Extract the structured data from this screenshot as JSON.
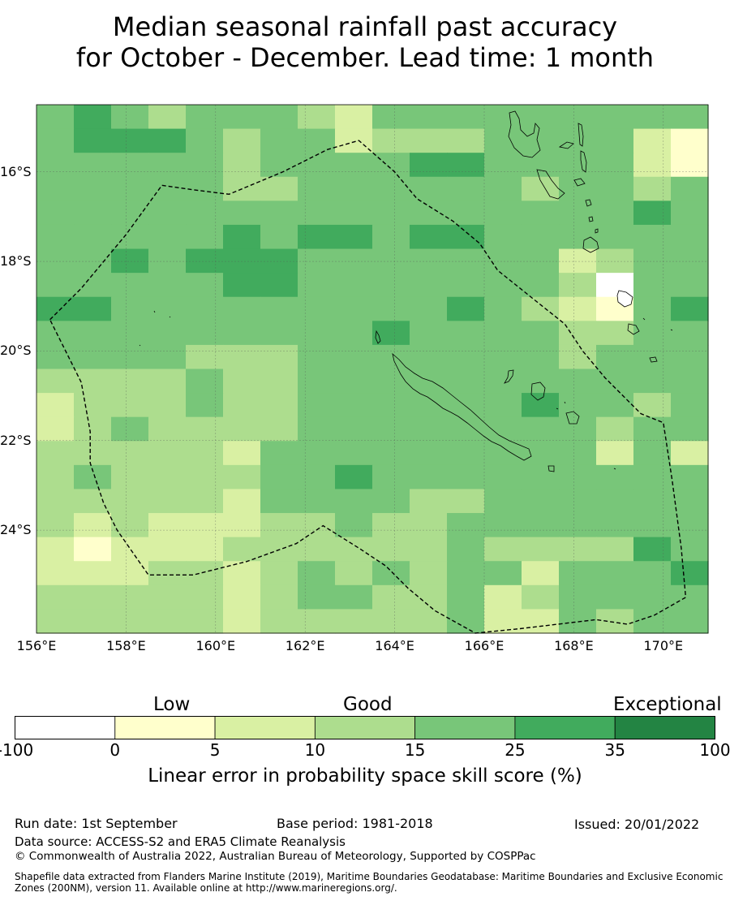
{
  "title": {
    "line1": "Median seasonal rainfall past accuracy",
    "line2": "for October - December. Lead time: 1 month"
  },
  "map": {
    "lon_range": [
      156.0,
      171.0
    ],
    "lat_range": [
      -26.3,
      -14.5
    ],
    "x_ticks": [
      "156°E",
      "158°E",
      "160°E",
      "162°E",
      "164°E",
      "166°E",
      "168°E",
      "170°E"
    ],
    "y_ticks": [
      "16°S",
      "18°S",
      "20°S",
      "22°S",
      "24°S"
    ],
    "grid": true,
    "cell_size_deg": 0.833,
    "skill_grid": [
      [
        3,
        4,
        3,
        2,
        3,
        3,
        3,
        2,
        1,
        3,
        3,
        3,
        3,
        3,
        3,
        3,
        3,
        3
      ],
      [
        3,
        4,
        4,
        4,
        3,
        2,
        3,
        3,
        1,
        2,
        2,
        2,
        3,
        3,
        3,
        3,
        1,
        0
      ],
      [
        3,
        3,
        3,
        3,
        3,
        2,
        3,
        3,
        3,
        3,
        4,
        4,
        3,
        3,
        3,
        3,
        1,
        0
      ],
      [
        3,
        3,
        3,
        3,
        3,
        2,
        2,
        3,
        3,
        3,
        3,
        3,
        3,
        2,
        3,
        3,
        2,
        3
      ],
      [
        3,
        3,
        3,
        3,
        3,
        3,
        3,
        3,
        3,
        3,
        3,
        3,
        3,
        3,
        3,
        3,
        4,
        3
      ],
      [
        3,
        3,
        3,
        3,
        3,
        4,
        3,
        4,
        4,
        3,
        4,
        4,
        3,
        3,
        3,
        3,
        3,
        3
      ],
      [
        3,
        3,
        4,
        3,
        4,
        4,
        4,
        3,
        3,
        3,
        3,
        3,
        3,
        3,
        1,
        2,
        3,
        3
      ],
      [
        3,
        3,
        3,
        3,
        3,
        4,
        4,
        3,
        3,
        3,
        3,
        3,
        3,
        3,
        2,
        -1,
        3,
        3
      ],
      [
        4,
        4,
        3,
        3,
        3,
        3,
        3,
        3,
        3,
        3,
        3,
        4,
        3,
        2,
        1,
        0,
        3,
        4
      ],
      [
        3,
        3,
        3,
        3,
        3,
        3,
        3,
        3,
        3,
        4,
        3,
        3,
        3,
        3,
        2,
        2,
        3,
        3
      ],
      [
        3,
        3,
        3,
        3,
        2,
        2,
        2,
        3,
        3,
        3,
        3,
        3,
        3,
        3,
        2,
        3,
        3,
        3
      ],
      [
        2,
        2,
        2,
        2,
        3,
        2,
        2,
        3,
        3,
        3,
        3,
        3,
        3,
        3,
        3,
        3,
        3,
        3
      ],
      [
        1,
        2,
        2,
        2,
        3,
        2,
        2,
        3,
        3,
        3,
        3,
        3,
        3,
        4,
        3,
        3,
        2,
        3
      ],
      [
        1,
        2,
        3,
        2,
        2,
        2,
        2,
        3,
        3,
        3,
        3,
        3,
        3,
        3,
        3,
        2,
        3,
        3
      ],
      [
        2,
        2,
        2,
        2,
        2,
        1,
        3,
        3,
        3,
        3,
        3,
        3,
        3,
        3,
        3,
        1,
        3,
        1
      ],
      [
        2,
        3,
        2,
        2,
        2,
        2,
        3,
        3,
        4,
        3,
        3,
        3,
        3,
        3,
        3,
        3,
        3,
        3
      ],
      [
        2,
        2,
        2,
        2,
        2,
        1,
        3,
        3,
        3,
        3,
        2,
        2,
        3,
        3,
        3,
        3,
        3,
        3
      ],
      [
        2,
        1,
        2,
        1,
        1,
        1,
        2,
        2,
        3,
        2,
        2,
        3,
        3,
        3,
        3,
        3,
        3,
        3
      ],
      [
        1,
        0,
        1,
        1,
        1,
        2,
        2,
        2,
        2,
        2,
        2,
        3,
        2,
        2,
        2,
        2,
        4,
        3
      ],
      [
        1,
        1,
        1,
        2,
        2,
        1,
        2,
        3,
        2,
        3,
        2,
        3,
        3,
        1,
        3,
        3,
        3,
        4
      ],
      [
        2,
        2,
        2,
        2,
        2,
        1,
        2,
        3,
        3,
        2,
        2,
        3,
        1,
        2,
        3,
        3,
        3,
        3
      ],
      [
        2,
        2,
        2,
        2,
        2,
        1,
        2,
        2,
        2,
        2,
        2,
        3,
        1,
        1,
        3,
        2,
        3,
        3
      ]
    ],
    "boundary_lonlat": [
      [
        156.3,
        -19.3
      ],
      [
        157.0,
        -18.6
      ],
      [
        158.0,
        -17.4
      ],
      [
        158.8,
        -16.3
      ],
      [
        159.5,
        -16.4
      ],
      [
        160.3,
        -16.5
      ],
      [
        161.5,
        -16.0
      ],
      [
        162.5,
        -15.5
      ],
      [
        163.2,
        -15.3
      ],
      [
        164.0,
        -16.0
      ],
      [
        164.5,
        -16.6
      ],
      [
        165.3,
        -17.1
      ],
      [
        165.9,
        -17.6
      ],
      [
        166.3,
        -18.2
      ],
      [
        166.8,
        -18.6
      ],
      [
        167.3,
        -19.0
      ],
      [
        167.8,
        -19.4
      ],
      [
        168.2,
        -20.0
      ],
      [
        168.7,
        -20.6
      ],
      [
        169.1,
        -21.0
      ],
      [
        169.5,
        -21.4
      ],
      [
        170.0,
        -21.6
      ],
      [
        170.2,
        -22.9
      ],
      [
        170.4,
        -24.4
      ],
      [
        170.5,
        -25.5
      ],
      [
        169.8,
        -25.9
      ],
      [
        169.2,
        -26.1
      ],
      [
        168.5,
        -26.0
      ],
      [
        166.8,
        -26.2
      ],
      [
        165.8,
        -26.3
      ],
      [
        164.9,
        -25.8
      ],
      [
        164.3,
        -25.3
      ],
      [
        163.8,
        -24.8
      ],
      [
        163.2,
        -24.4
      ],
      [
        162.4,
        -23.9
      ],
      [
        161.8,
        -24.3
      ],
      [
        160.7,
        -24.7
      ],
      [
        159.5,
        -25.0
      ],
      [
        158.5,
        -25.0
      ],
      [
        157.8,
        -24.0
      ],
      [
        157.5,
        -23.4
      ],
      [
        157.2,
        -22.5
      ],
      [
        157.2,
        -21.8
      ],
      [
        157.0,
        -20.7
      ],
      [
        156.3,
        -19.3
      ]
    ]
  },
  "colorbar": {
    "category_labels": [
      "Low",
      "Good",
      "Exceptional"
    ],
    "tick_labels": [
      "-100",
      "0",
      "5",
      "10",
      "15",
      "25",
      "35",
      "100"
    ],
    "colors": [
      "#ffffff",
      "#ffffcc",
      "#d9f0a3",
      "#addd8e",
      "#78c679",
      "#41ab5d",
      "#238443"
    ],
    "title": "Linear error in probability space skill score (%)"
  },
  "footer": {
    "run_date": "Run date: 1st September",
    "base_period": "Base period: 1981-2018",
    "issued": "Issued: 20/01/2022",
    "data_source": "Data source: ACCESS-S2 and ERA5 Climate Reanalysis",
    "copyright": "© Commonwealth of Australia 2022, Australian Bureau of Meteorology, Supported by COSPPac",
    "shapefile": "Shapefile data extracted from Flanders Marine Institute (2019), Maritime Boundaries Geodatabase: Maritime Boundaries and Exclusive Economic Zones (200NM), version 11. Available online at http://www.marineregions.org/."
  }
}
